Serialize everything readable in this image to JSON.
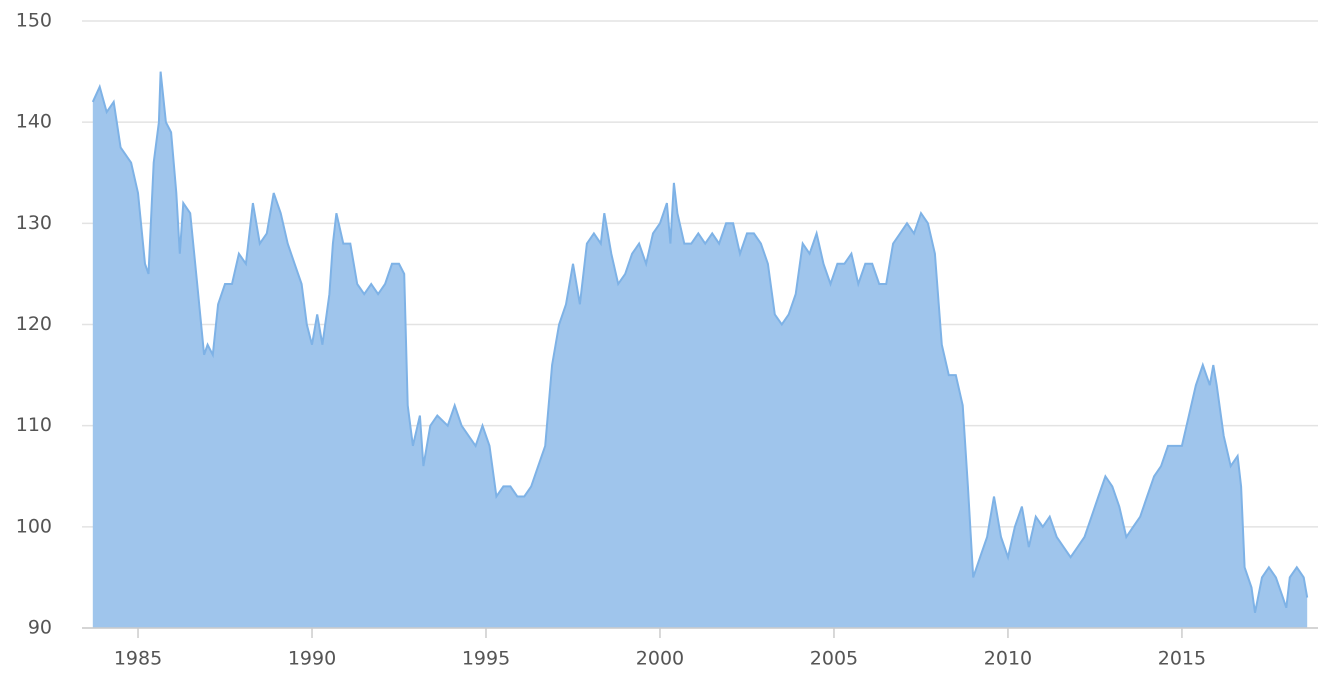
{
  "chart_data": {
    "type": "area",
    "x": [
      1983.7,
      1983.9,
      1984.1,
      1984.3,
      1984.5,
      1984.8,
      1985.0,
      1985.2,
      1985.3,
      1985.45,
      1985.6,
      1985.65,
      1985.8,
      1985.95,
      1986.1,
      1986.2,
      1986.3,
      1986.5,
      1986.7,
      1986.9,
      1987.0,
      1987.15,
      1987.3,
      1987.5,
      1987.7,
      1987.9,
      1988.1,
      1988.3,
      1988.5,
      1988.7,
      1988.9,
      1989.1,
      1989.3,
      1989.5,
      1989.7,
      1989.85,
      1990.0,
      1990.15,
      1990.3,
      1990.5,
      1990.6,
      1990.7,
      1990.9,
      1991.1,
      1991.3,
      1991.5,
      1991.7,
      1991.9,
      1992.1,
      1992.3,
      1992.5,
      1992.65,
      1992.75,
      1992.9,
      1993.1,
      1993.2,
      1993.4,
      1993.6,
      1993.9,
      1994.1,
      1994.3,
      1994.5,
      1994.7,
      1994.9,
      1995.1,
      1995.3,
      1995.5,
      1995.7,
      1995.9,
      1996.1,
      1996.3,
      1996.5,
      1996.7,
      1996.9,
      1997.1,
      1997.3,
      1997.5,
      1997.7,
      1997.9,
      1998.1,
      1998.3,
      1998.4,
      1998.6,
      1998.8,
      1999.0,
      1999.2,
      1999.4,
      1999.6,
      1999.8,
      2000.0,
      2000.2,
      2000.3,
      2000.4,
      2000.5,
      2000.7,
      2000.9,
      2001.1,
      2001.3,
      2001.5,
      2001.7,
      2001.9,
      2002.1,
      2002.3,
      2002.5,
      2002.7,
      2002.9,
      2003.1,
      2003.3,
      2003.5,
      2003.7,
      2003.9,
      2004.1,
      2004.3,
      2004.5,
      2004.7,
      2004.9,
      2005.1,
      2005.3,
      2005.5,
      2005.7,
      2005.9,
      2006.1,
      2006.3,
      2006.5,
      2006.7,
      2006.9,
      2007.1,
      2007.3,
      2007.5,
      2007.7,
      2007.9,
      2008.1,
      2008.3,
      2008.5,
      2008.7,
      2008.85,
      2009.0,
      2009.2,
      2009.4,
      2009.6,
      2009.8,
      2010.0,
      2010.2,
      2010.4,
      2010.6,
      2010.8,
      2011.0,
      2011.2,
      2011.4,
      2011.6,
      2011.8,
      2012.0,
      2012.2,
      2012.4,
      2012.6,
      2012.8,
      2013.0,
      2013.2,
      2013.4,
      2013.6,
      2013.8,
      2014.0,
      2014.2,
      2014.4,
      2014.6,
      2014.8,
      2015.0,
      2015.2,
      2015.4,
      2015.6,
      2015.8,
      2015.9,
      2016.0,
      2016.2,
      2016.4,
      2016.6,
      2016.7,
      2016.8,
      2017.0,
      2017.1,
      2017.3,
      2017.5,
      2017.7,
      2017.9,
      2018.0,
      2018.1,
      2018.3,
      2018.5,
      2018.6
    ],
    "values": [
      142,
      143.5,
      141,
      142,
      137.5,
      136,
      133,
      126,
      125,
      136,
      140,
      145,
      140,
      139,
      133,
      127,
      132,
      131,
      124,
      117,
      118,
      117,
      122,
      124,
      124,
      127,
      126,
      132,
      128,
      129,
      133,
      131,
      128,
      126,
      124,
      120,
      118,
      121,
      118,
      123,
      128,
      131,
      128,
      128,
      124,
      123,
      124,
      123,
      124,
      126,
      126,
      125,
      112,
      108,
      111,
      106,
      110,
      111,
      110,
      112,
      110,
      109,
      108,
      110,
      108,
      103,
      104,
      104,
      103,
      103,
      104,
      106,
      108,
      116,
      120,
      122,
      126,
      122,
      128,
      129,
      128,
      131,
      127,
      124,
      125,
      127,
      128,
      126,
      129,
      130,
      132,
      128,
      134,
      131,
      128,
      128,
      129,
      128,
      129,
      128,
      130,
      130,
      127,
      129,
      129,
      128,
      126,
      121,
      120,
      121,
      123,
      128,
      127,
      129,
      126,
      124,
      126,
      126,
      127,
      124,
      126,
      126,
      124,
      124,
      128,
      129,
      130,
      129,
      131,
      130,
      127,
      118,
      115,
      115,
      112,
      104,
      95,
      97,
      99,
      103,
      99,
      97,
      100,
      102,
      98,
      101,
      100,
      101,
      99,
      98,
      97,
      98,
      99,
      101,
      103,
      105,
      104,
      102,
      99,
      100,
      101,
      103,
      105,
      106,
      108,
      108,
      108,
      111,
      114,
      116,
      114,
      116,
      114,
      109,
      106,
      107,
      104,
      96,
      94,
      91.5,
      95,
      96,
      95,
      93,
      92,
      95,
      96,
      95,
      93
    ],
    "color": "#9fc5ec",
    "line_color": "#7eb2e6",
    "xlim": [
      1983.39,
      2018.91
    ],
    "xticks": [
      1985,
      1990,
      1995,
      2000,
      2005,
      2010,
      2015
    ],
    "ylim": [
      90,
      150
    ],
    "yticks": [
      90,
      100,
      110,
      120,
      130,
      140,
      150
    ],
    "grid": true
  }
}
